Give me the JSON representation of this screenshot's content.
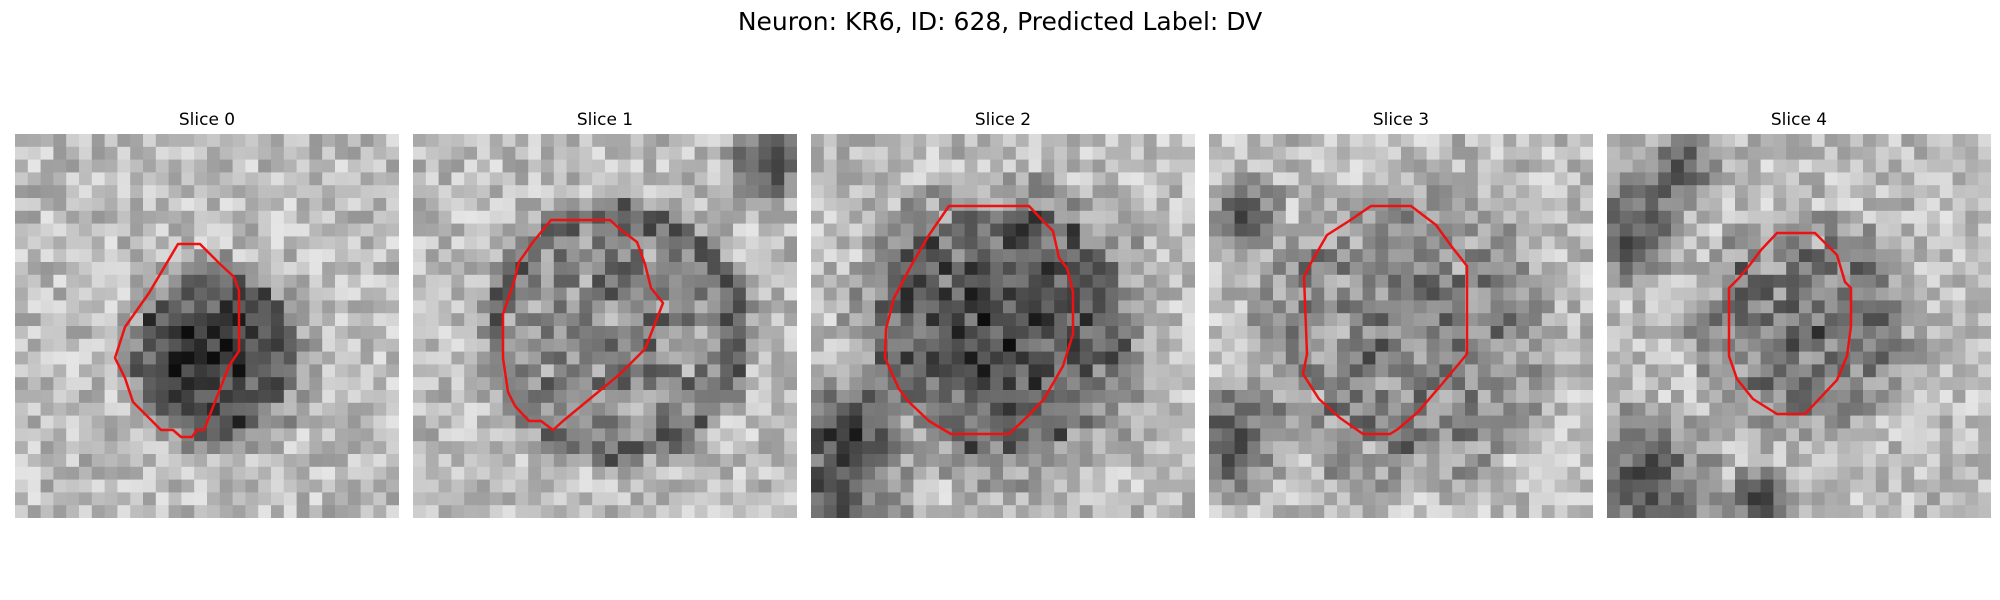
{
  "figure": {
    "title": "Neuron: KR6, ID: 628, Predicted Label: DV"
  },
  "panels": [
    {
      "title": "Slice 0"
    },
    {
      "title": "Slice 1"
    },
    {
      "title": "Slice 2"
    },
    {
      "title": "Slice 3"
    },
    {
      "title": "Slice 4"
    }
  ],
  "colors": {
    "contour": "#ee1111",
    "background": "#ffffff"
  }
}
